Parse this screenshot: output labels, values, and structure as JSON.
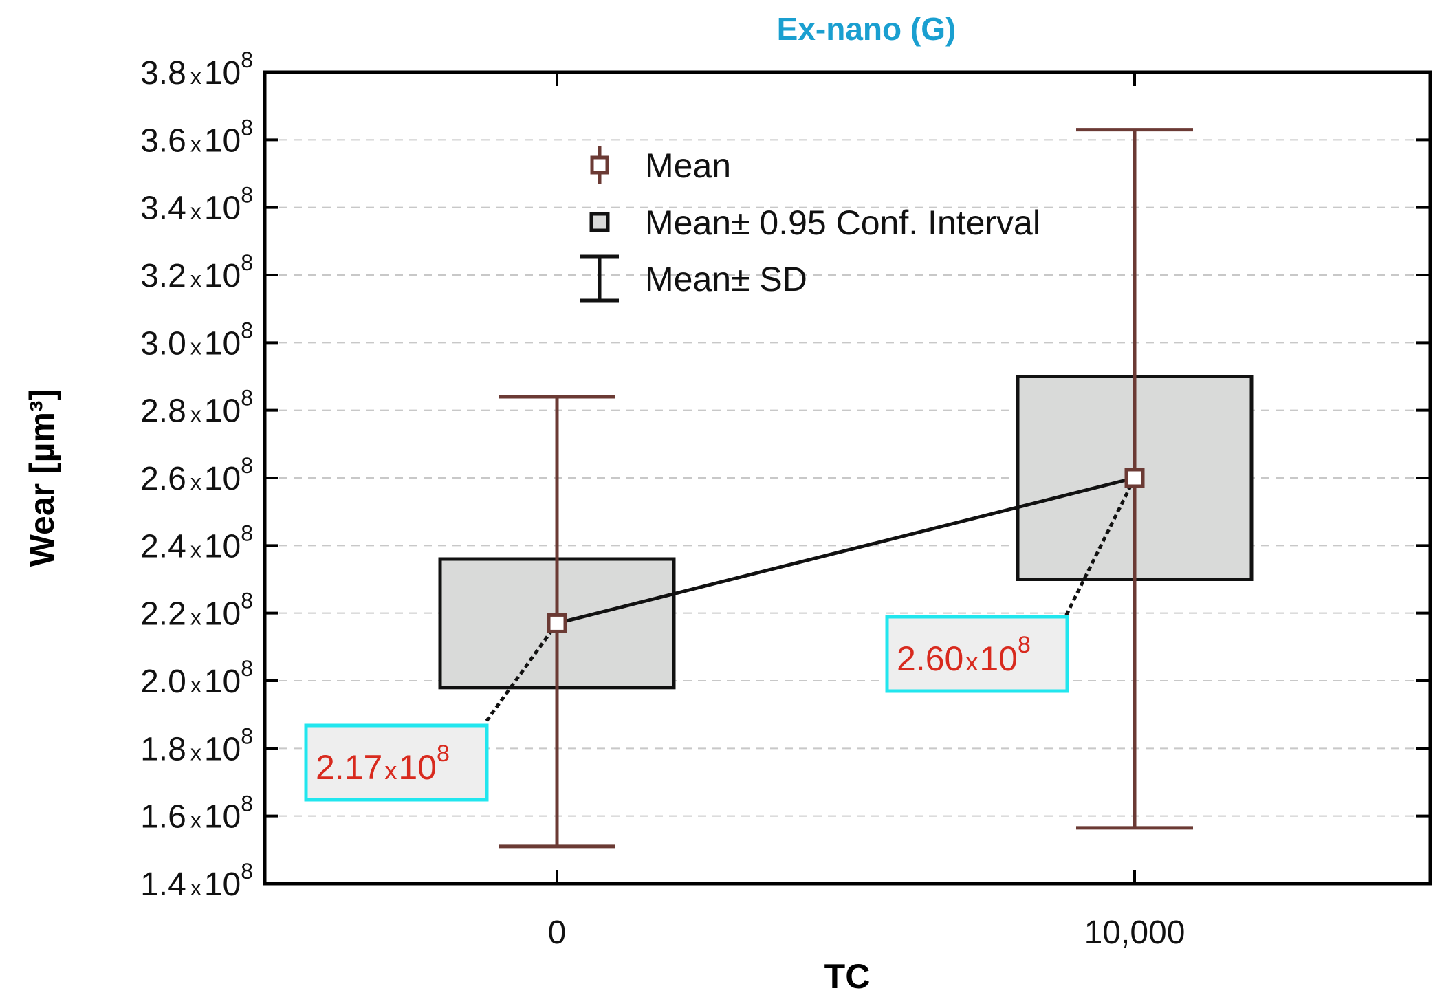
{
  "chart_data": {
    "type": "box",
    "title": "Ex-nano (G)",
    "xlabel": "TC",
    "ylabel": "Wear [µm³]",
    "ylim": [
      140000000.0,
      380000000.0
    ],
    "yticks": [
      140000000.0,
      160000000.0,
      180000000.0,
      200000000.0,
      220000000.0,
      240000000.0,
      260000000.0,
      280000000.0,
      300000000.0,
      320000000.0,
      340000000.0,
      360000000.0,
      380000000.0
    ],
    "ytick_mantissas": [
      "1.4",
      "1.6",
      "1.8",
      "2.0",
      "2.2",
      "2.4",
      "2.6",
      "2.8",
      "3.0",
      "3.2",
      "3.4",
      "3.6",
      "3.8"
    ],
    "ytick_times": "x",
    "ytick_base": "10",
    "ytick_exp": "8",
    "grid": true,
    "categories": [
      "0",
      "10,000"
    ],
    "series": [
      {
        "category": "0",
        "mean": 217000000.0,
        "ci_low": 198000000.0,
        "ci_high": 236000000.0,
        "sd_low": 151000000.0,
        "sd_high": 284000000.0,
        "annotation": {
          "mantissa": "2.17",
          "times": "x",
          "base": "10",
          "exp": "8"
        }
      },
      {
        "category": "10,000",
        "mean": 260000000.0,
        "ci_low": 230000000.0,
        "ci_high": 290000000.0,
        "sd_low": 156500000.0,
        "sd_high": 363000000.0,
        "annotation": {
          "mantissa": "2.60",
          "times": "x",
          "base": "10",
          "exp": "8"
        }
      }
    ],
    "legend": {
      "position": "top-center",
      "entries": [
        "Mean",
        "Mean± 0.95 Conf. Interval",
        "Mean± SD"
      ]
    },
    "colors": {
      "title": "#1a9fd0",
      "whisker": "#6b3a34",
      "box_fill": "#d9dad9",
      "line": "#111111",
      "grid": "#c8c8c8",
      "annotation_text": "#d82a1e",
      "annotation_border": "#21e6ee",
      "annotation_fill": "#eeeeee"
    }
  }
}
